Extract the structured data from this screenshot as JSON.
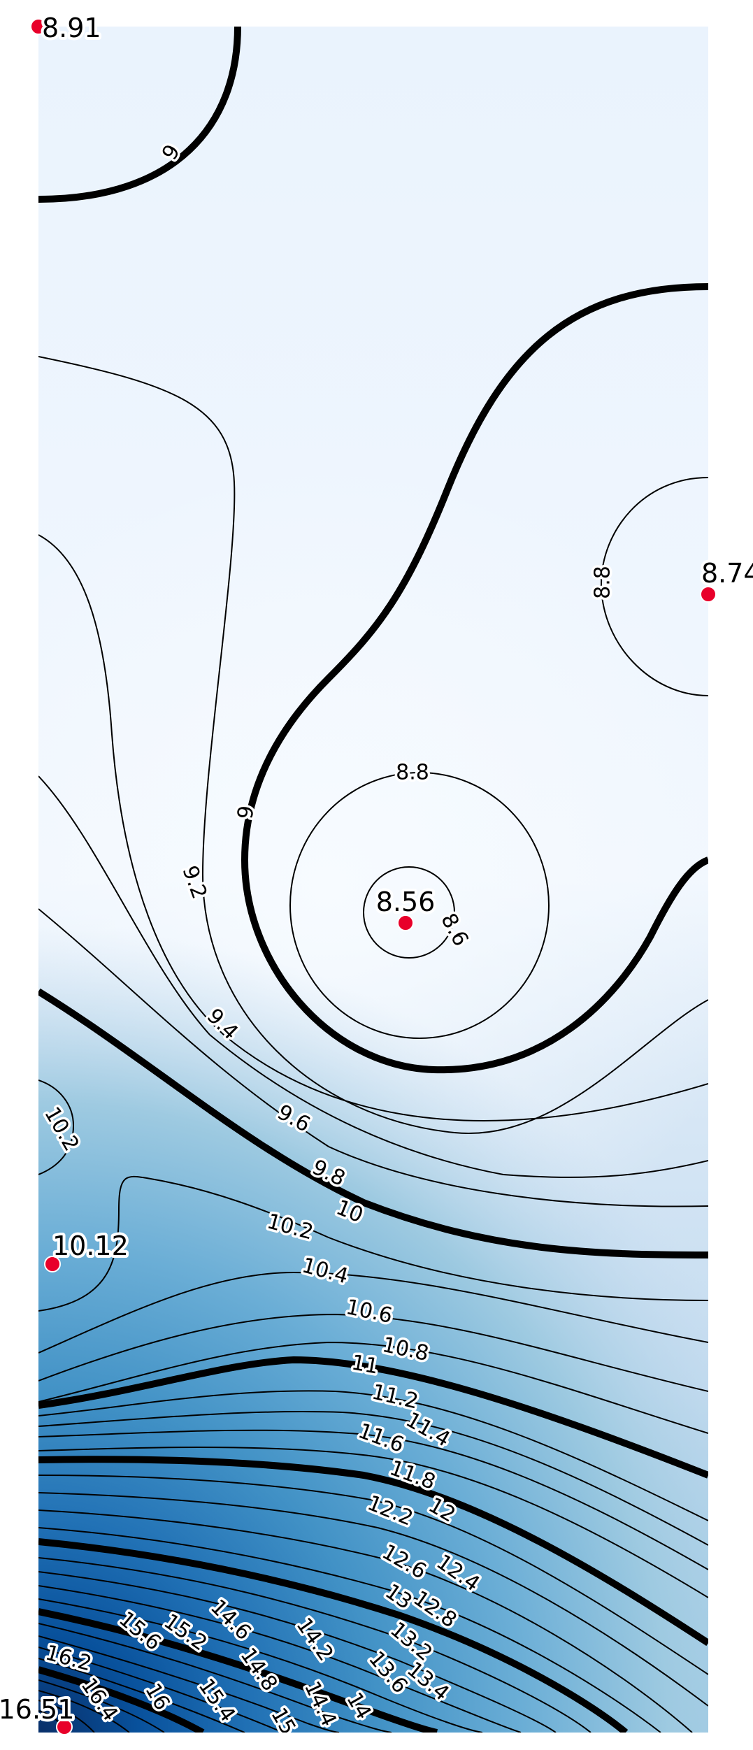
{
  "chart_data": {
    "type": "contour",
    "title": "",
    "xlabel": "",
    "ylabel": "",
    "grid": false,
    "legend": "none",
    "colormap": "Blues",
    "colors": {
      "min": "#f2f8fe",
      "max": "#08306b",
      "minor_line": "#000000",
      "major_line": "#000000",
      "point": "#e8002a"
    },
    "level_step": 0.2,
    "major_level_step": 1,
    "value_range": [
      8.56,
      16.51
    ],
    "points": [
      {
        "label": "8.91",
        "value": 8.91
      },
      {
        "label": "8.74",
        "value": 8.74
      },
      {
        "label": "8.56",
        "value": 8.56
      },
      {
        "label": "10.12",
        "value": 10.12
      },
      {
        "label": "16.51",
        "value": 16.51
      }
    ],
    "contour_labels": [
      {
        "text": "9"
      },
      {
        "text": "8.8"
      },
      {
        "text": "9"
      },
      {
        "text": "9.2"
      },
      {
        "text": "8.8"
      },
      {
        "text": "8.6"
      },
      {
        "text": "9.4"
      },
      {
        "text": "10.2"
      },
      {
        "text": "9.6"
      },
      {
        "text": "9.8"
      },
      {
        "text": "10"
      },
      {
        "text": "10.2"
      },
      {
        "text": "10.4"
      },
      {
        "text": "10.6"
      },
      {
        "text": "10.8"
      },
      {
        "text": "11"
      },
      {
        "text": "11.2"
      },
      {
        "text": "11.4"
      },
      {
        "text": "11.6"
      },
      {
        "text": "11.8"
      },
      {
        "text": "12"
      },
      {
        "text": "12.2"
      },
      {
        "text": "12.4"
      },
      {
        "text": "12.6"
      },
      {
        "text": "12.8"
      },
      {
        "text": "13"
      },
      {
        "text": "13.2"
      },
      {
        "text": "13.4"
      },
      {
        "text": "13.6"
      },
      {
        "text": "14"
      },
      {
        "text": "14.2"
      },
      {
        "text": "14.4"
      },
      {
        "text": "14.6"
      },
      {
        "text": "14.8"
      },
      {
        "text": "15"
      },
      {
        "text": "15.2"
      },
      {
        "text": "15.4"
      },
      {
        "text": "15.6"
      },
      {
        "text": "16"
      },
      {
        "text": "16.2"
      },
      {
        "text": "16.4"
      }
    ]
  }
}
